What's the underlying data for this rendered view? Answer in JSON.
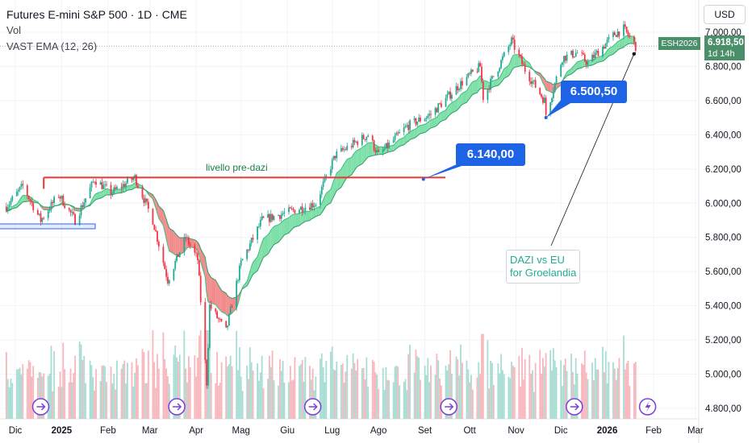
{
  "header": {
    "title": "Futures E-mini S&P 500 · 1D · CME",
    "vol_label": "Vol",
    "ema_label": "VAST EMA (12, 26)"
  },
  "toolbar": {
    "currency_label": "USD"
  },
  "price_tag": {
    "symbol": "ESH2026",
    "price": "6.918,50",
    "countdown": "1d 14h"
  },
  "annotations": {
    "level_label": "livello pre-dazi",
    "callout_low": "6.140,00",
    "callout_high": "6.500,50",
    "note_line1": "DAZI vs EU",
    "note_line2": "for Groelandia"
  },
  "colors": {
    "up": "#22ab94",
    "down": "#f23645",
    "ema_bull_fill": "#7ee0a8",
    "ema_bear_fill": "#f28b8b",
    "level_line": "#e53935",
    "callout_bg": "#1e63e5",
    "event_icon": "#7b3fd6"
  },
  "chart_data": {
    "type": "candlestick",
    "y_axis_ticks": [
      "7.000,00",
      "6.800,00",
      "6.600,00",
      "6.400,00",
      "6.200,00",
      "6.000,00",
      "5.800,00",
      "5.600,00",
      "5.400,00",
      "5.200,00",
      "5.000,00",
      "4.800,00"
    ],
    "ylim": [
      4760,
      7100
    ],
    "x_axis_ticks": [
      "Dic",
      "2025",
      "Feb",
      "Mar",
      "Apr",
      "Mag",
      "Giu",
      "Lug",
      "Ago",
      "Set",
      "Ott",
      "Nov",
      "Dic",
      "2026",
      "Feb",
      "Mar"
    ],
    "price_path": [
      {
        "date": "2024-11-25",
        "close": 5980
      },
      {
        "date": "2024-12-06",
        "close": 6100
      },
      {
        "date": "2024-12-18",
        "close": 5900
      },
      {
        "date": "2024-12-30",
        "close": 6050
      },
      {
        "date": "2025-01-10",
        "close": 5900
      },
      {
        "date": "2025-01-23",
        "close": 6140
      },
      {
        "date": "2025-02-03",
        "close": 6060
      },
      {
        "date": "2025-02-19",
        "close": 6150
      },
      {
        "date": "2025-03-03",
        "close": 5900
      },
      {
        "date": "2025-03-13",
        "close": 5550
      },
      {
        "date": "2025-03-25",
        "close": 5800
      },
      {
        "date": "2025-04-02",
        "close": 5670
      },
      {
        "date": "2025-04-08",
        "close": 4950
      },
      {
        "date": "2025-04-10",
        "close": 5400
      },
      {
        "date": "2025-04-21",
        "close": 5250
      },
      {
        "date": "2025-05-01",
        "close": 5650
      },
      {
        "date": "2025-05-15",
        "close": 5900
      },
      {
        "date": "2025-06-02",
        "close": 5950
      },
      {
        "date": "2025-06-20",
        "close": 6000
      },
      {
        "date": "2025-07-03",
        "close": 6280
      },
      {
        "date": "2025-07-25",
        "close": 6400
      },
      {
        "date": "2025-08-01",
        "close": 6280
      },
      {
        "date": "2025-08-20",
        "close": 6450
      },
      {
        "date": "2025-09-05",
        "close": 6520
      },
      {
        "date": "2025-09-25",
        "close": 6700
      },
      {
        "date": "2025-10-08",
        "close": 6800
      },
      {
        "date": "2025-10-10",
        "close": 6620
      },
      {
        "date": "2025-10-29",
        "close": 6950
      },
      {
        "date": "2025-11-07",
        "close": 6780
      },
      {
        "date": "2025-11-20",
        "close": 6600
      },
      {
        "date": "2025-11-21",
        "close": 6520
      },
      {
        "date": "2025-12-02",
        "close": 6850
      },
      {
        "date": "2025-12-12",
        "close": 6880
      },
      {
        "date": "2025-12-19",
        "close": 6820
      },
      {
        "date": "2026-01-06",
        "close": 6990
      },
      {
        "date": "2026-01-12",
        "close": 7020
      },
      {
        "date": "2026-01-20",
        "close": 6918.5
      }
    ],
    "levels": [
      {
        "name": "livello pre-dazi",
        "price": 6150
      }
    ],
    "callouts": [
      {
        "label": "6.140,00",
        "date": "2025-08-31",
        "price": 6140
      },
      {
        "label": "6.500,50",
        "date": "2025-11-21",
        "price": 6500.5
      }
    ],
    "last_price": 6918.5
  }
}
